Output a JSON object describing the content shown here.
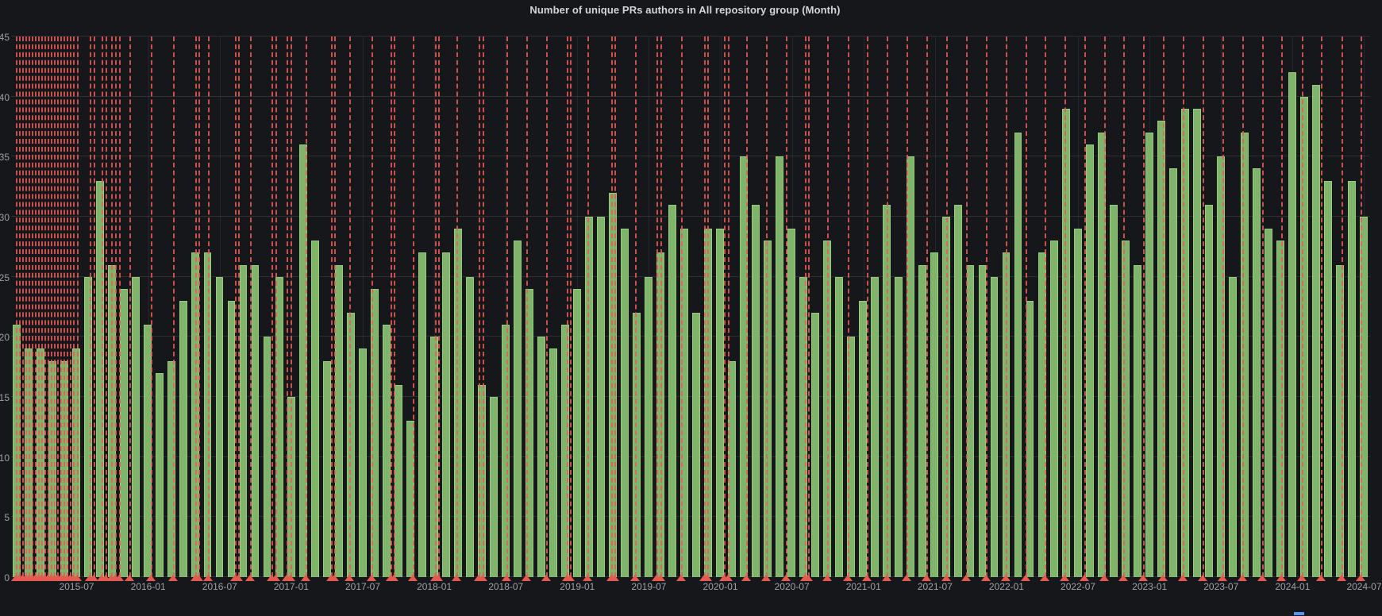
{
  "panel": {
    "title": "Number of unique PRs authors in All repository group (Month)"
  },
  "colors": {
    "background": "#15171b",
    "bar_fill": "#80b46a",
    "bar_border": "#96cc80",
    "annotation": "#e45a50",
    "grid": "rgba(204,204,220,0.13)",
    "axis_text": "#9da1a8",
    "title_text": "#d4d5d8",
    "legend_fragment": "#5794f2"
  },
  "chart_data": {
    "type": "bar",
    "title": "Number of unique PRs authors in All repository group (Month)",
    "xlabel": "",
    "ylabel": "",
    "ylim": [
      0,
      45
    ],
    "y_ticks": [
      0,
      5,
      10,
      15,
      20,
      25,
      30,
      35,
      40,
      45
    ],
    "grid": "horizontal+vertical-at-ticks",
    "legend_position": "none",
    "categories": [
      "2015-02",
      "2015-03",
      "2015-04",
      "2015-05",
      "2015-06",
      "2015-07",
      "2015-08",
      "2015-09",
      "2015-10",
      "2015-11",
      "2015-12",
      "2016-01",
      "2016-02",
      "2016-03",
      "2016-04",
      "2016-05",
      "2016-06",
      "2016-07",
      "2016-08",
      "2016-09",
      "2016-10",
      "2016-11",
      "2016-12",
      "2017-01",
      "2017-02",
      "2017-03",
      "2017-04",
      "2017-05",
      "2017-06",
      "2017-07",
      "2017-08",
      "2017-09",
      "2017-10",
      "2017-11",
      "2017-12",
      "2018-01",
      "2018-02",
      "2018-03",
      "2018-04",
      "2018-05",
      "2018-06",
      "2018-07",
      "2018-08",
      "2018-09",
      "2018-10",
      "2018-11",
      "2018-12",
      "2019-01",
      "2019-02",
      "2019-03",
      "2019-04",
      "2019-05",
      "2019-06",
      "2019-07",
      "2019-08",
      "2019-09",
      "2019-10",
      "2019-11",
      "2019-12",
      "2020-01",
      "2020-02",
      "2020-03",
      "2020-04",
      "2020-05",
      "2020-06",
      "2020-07",
      "2020-08",
      "2020-09",
      "2020-10",
      "2020-11",
      "2020-12",
      "2021-01",
      "2021-02",
      "2021-03",
      "2021-04",
      "2021-05",
      "2021-06",
      "2021-07",
      "2021-08",
      "2021-09",
      "2021-10",
      "2021-11",
      "2021-12",
      "2022-01",
      "2022-02",
      "2022-03",
      "2022-04",
      "2022-05",
      "2022-06",
      "2022-07",
      "2022-08",
      "2022-09",
      "2022-10",
      "2022-11",
      "2022-12",
      "2023-01",
      "2023-02",
      "2023-03",
      "2023-04",
      "2023-05",
      "2023-06",
      "2023-07",
      "2023-08",
      "2023-09",
      "2023-10",
      "2023-11",
      "2023-12",
      "2024-01",
      "2024-02",
      "2024-03",
      "2024-04",
      "2024-05",
      "2024-06",
      "2024-07"
    ],
    "values": [
      21,
      19,
      19,
      18,
      18,
      19,
      25,
      33,
      26,
      24,
      25,
      21,
      17,
      18,
      23,
      27,
      27,
      25,
      23,
      26,
      26,
      20,
      25,
      15,
      36,
      28,
      18,
      26,
      22,
      19,
      24,
      21,
      16,
      13,
      27,
      20,
      27,
      29,
      25,
      16,
      15,
      21,
      28,
      24,
      20,
      19,
      21,
      24,
      30,
      30,
      32,
      29,
      22,
      25,
      27,
      31,
      29,
      22,
      29,
      29,
      18,
      35,
      31,
      28,
      35,
      29,
      25,
      22,
      28,
      25,
      20,
      23,
      25,
      31,
      25,
      35,
      26,
      27,
      30,
      31,
      26,
      26,
      25,
      27,
      37,
      23,
      27,
      28,
      39,
      29,
      36,
      37,
      31,
      28,
      26,
      37,
      38,
      34,
      39,
      39,
      31,
      35,
      25,
      37,
      34,
      29,
      28,
      42,
      40,
      41,
      33,
      26,
      33,
      30
    ],
    "x_tick_labels": [
      "2015-07",
      "2016-01",
      "2016-07",
      "2017-01",
      "2017-07",
      "2018-01",
      "2018-07",
      "2019-01",
      "2019-07",
      "2020-01",
      "2020-07",
      "2021-01",
      "2021-07",
      "2022-01",
      "2022-07",
      "2023-01",
      "2023-07",
      "2024-01",
      "2024-07"
    ],
    "x_tick_first_index": 5,
    "x_tick_step": 6,
    "annotations": {
      "style": "vertical-dashed-line-with-triangle-marker",
      "color": "#e45a50",
      "x_percents": [
        0.35,
        0.58,
        0.82,
        1.05,
        1.29,
        1.52,
        1.75,
        1.99,
        2.22,
        2.45,
        2.69,
        2.92,
        3.15,
        3.39,
        3.62,
        3.86,
        4.09,
        4.32,
        4.56,
        4.85,
        5.78,
        6.07,
        6.66,
        6.95,
        7.36,
        7.65,
        7.94,
        8.7,
        10.28,
        11.92,
        13.55,
        13.79,
        14.49,
        16.47,
        16.71,
        17.58,
        19.16,
        19.45,
        20.27,
        20.56,
        21.67,
        23.54,
        23.77,
        24.88,
        26.52,
        27.92,
        28.15,
        29.56,
        31.19,
        31.43,
        32.77,
        34.4,
        34.7,
        36.45,
        37.91,
        39.37,
        40.89,
        41.12,
        42.41,
        44.16,
        44.39,
        45.91,
        47.49,
        47.78,
        49.3,
        50.99,
        51.23,
        52.45,
        52.75,
        54.09,
        55.55,
        57.01,
        58.41,
        58.64,
        60.05,
        61.56,
        62.97,
        64.43,
        65.89,
        67.35,
        68.81,
        70.27,
        71.73,
        73.19,
        74.65,
        76.05,
        77.51,
        78.97,
        80.43,
        81.83,
        83.29,
        84.75,
        86.21,
        87.68,
        89.14,
        90.6,
        92.06,
        93.46,
        94.98,
        96.38,
        97.9,
        99.3
      ]
    }
  }
}
